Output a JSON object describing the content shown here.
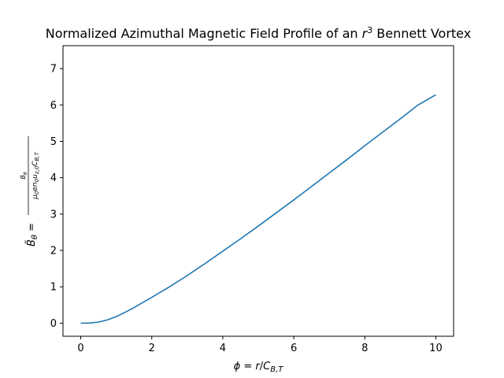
{
  "chart_data": {
    "type": "line",
    "title": "Normalized Azimuthal Magnetic Field Profile of an r³ Bennett Vortex",
    "xlabel": "ϕ = r/C_B,T",
    "ylabel": "B̃_θ = B_θ / (μ₀ e n₀ u_z,0 C_B,T)",
    "xlim": [
      -0.5,
      10.5
    ],
    "ylim": [
      -0.36,
      7.63
    ],
    "xticks": [
      0,
      2,
      4,
      6,
      8,
      10
    ],
    "yticks": [
      0,
      1,
      2,
      3,
      4,
      5,
      6,
      7
    ],
    "grid": false,
    "line_color": "#1f77b4",
    "series": [
      {
        "x": [
          0,
          0.25,
          0.5,
          0.75,
          1,
          1.25,
          1.5,
          1.75,
          2,
          2.5,
          3,
          3.5,
          4,
          4.5,
          5,
          5.5,
          6,
          6.5,
          7,
          7.5,
          8,
          8.5,
          9,
          9.5,
          10
        ],
        "values": [
          0,
          0.004,
          0.03,
          0.09,
          0.18,
          0.3,
          0.43,
          0.57,
          0.71,
          1.0,
          1.31,
          1.64,
          1.98,
          2.32,
          2.67,
          3.03,
          3.39,
          3.76,
          4.13,
          4.5,
          4.88,
          5.25,
          5.62,
          6.0,
          6.28
        ]
      }
    ]
  }
}
